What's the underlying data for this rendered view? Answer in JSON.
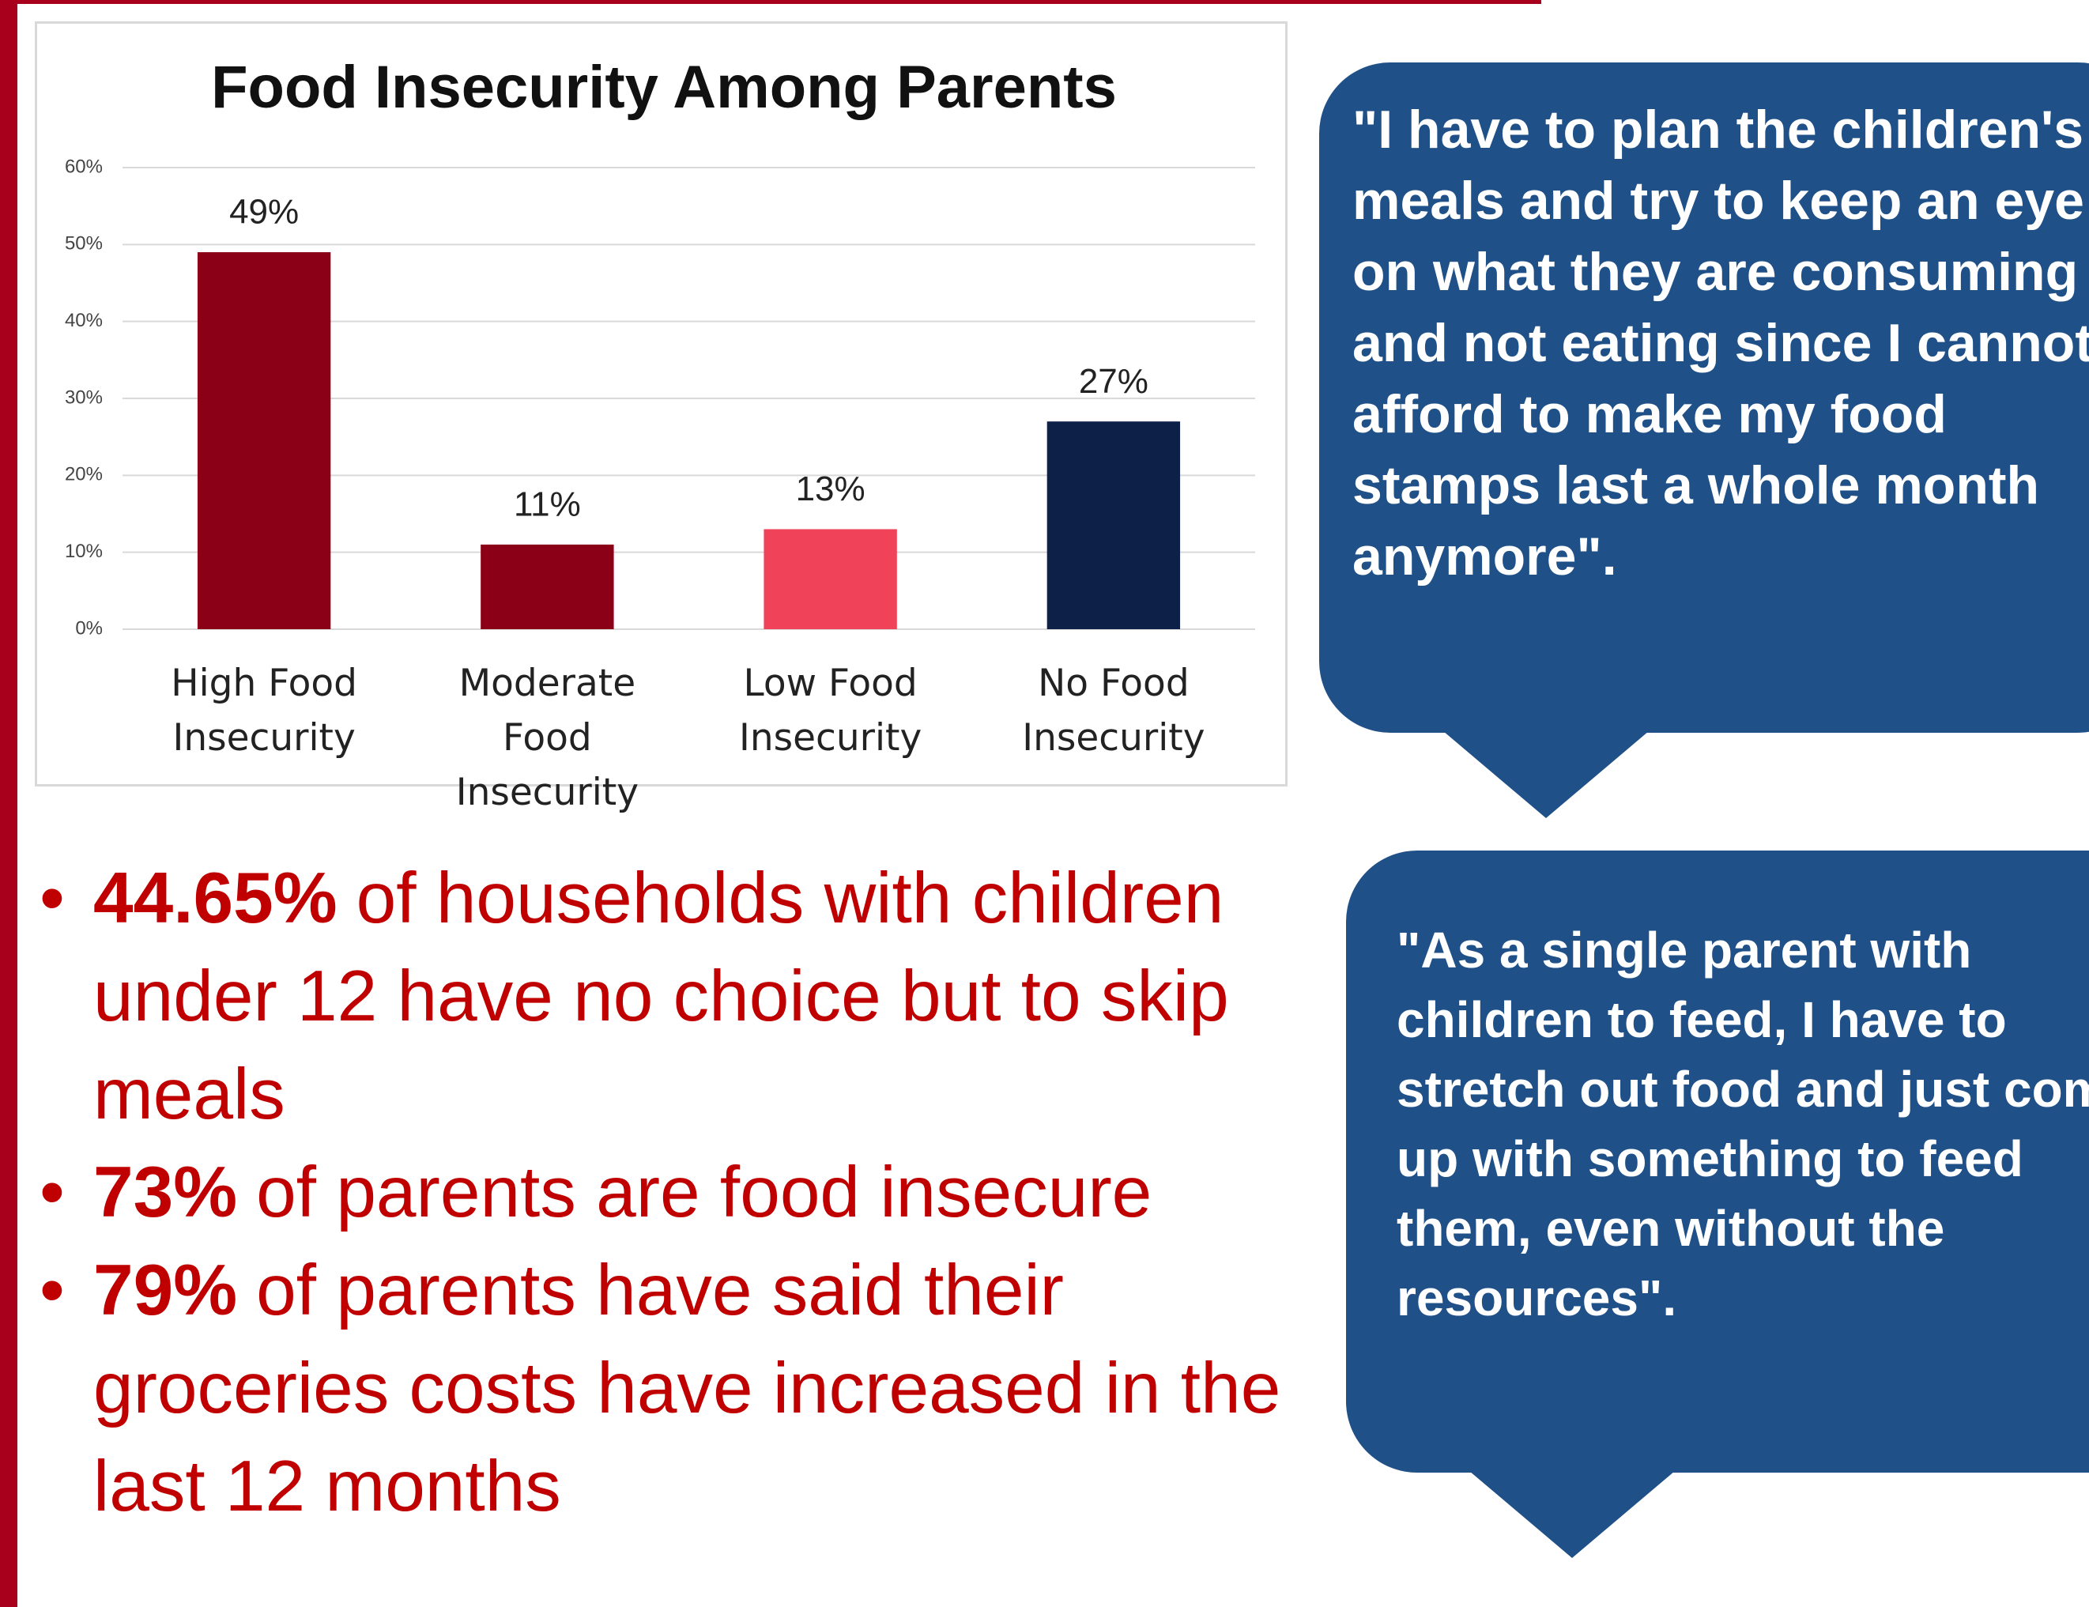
{
  "chart_data": {
    "type": "bar",
    "title": "Food Insecurity Among Parents",
    "categories": [
      "High Food Insecurity",
      "Moderate Food Insecurity",
      "Low Food Insecurity",
      "No Food Insecurity"
    ],
    "values": [
      49,
      11,
      13,
      27
    ],
    "value_labels": [
      "49%",
      "11%",
      "13%",
      "27%"
    ],
    "colors": [
      "#8b0016",
      "#8b0016",
      "#f0435a",
      "#0d2148"
    ],
    "ylim": [
      0,
      60
    ],
    "yticks": [
      {
        "value": 0,
        "label": "0%"
      },
      {
        "value": 10,
        "label": "10%"
      },
      {
        "value": 20,
        "label": "20%"
      },
      {
        "value": 30,
        "label": "30%"
      },
      {
        "value": 40,
        "label": "40%"
      },
      {
        "value": 50,
        "label": "50%"
      },
      {
        "value": 60,
        "label": "60%"
      }
    ],
    "grid": true
  },
  "bullets": [
    {
      "bold": "44.65%",
      "text": "of households with children under 12 have no choice but to skip meals"
    },
    {
      "bold": "73%",
      "text": "of parents are food insecure"
    },
    {
      "bold": "79%",
      "text": "of parents have said their groceries costs have increased in the last 12 months"
    }
  ],
  "quotes": [
    "\"I have to plan the children's meals and try to keep an eye on what they are consuming and not eating since I cannot afford to make my food stamps last a whole month anymore\".",
    "\"As a single parent with children to feed, I have to stretch out food and just come up with something to feed them, even without the resources\"."
  ]
}
